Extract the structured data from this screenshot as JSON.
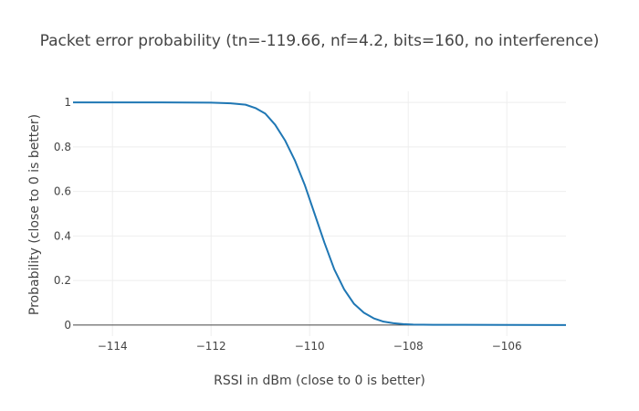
{
  "chart_data": {
    "type": "line",
    "title": "Packet error probability (tn=-119.66, nf=4.2, bits=160, no interference)",
    "xlabel": "RSSI in dBm (close to 0 is better)",
    "ylabel": "Probability (close to 0 is better)",
    "xlim": [
      -114.8,
      -104.8
    ],
    "ylim": [
      -0.05,
      1.05
    ],
    "x_ticks": [
      -114,
      -112,
      -110,
      -108,
      -106
    ],
    "x_tick_labels": [
      "−114",
      "−112",
      "−110",
      "−108",
      "−106"
    ],
    "y_ticks": [
      0,
      0.2,
      0.4,
      0.6,
      0.8,
      1
    ],
    "y_tick_labels": [
      "0",
      "0.2",
      "0.4",
      "0.6",
      "0.8",
      "1"
    ],
    "grid": true,
    "zero_line": true,
    "series": [
      {
        "color": "#1f77b4",
        "x": [
          -114.8,
          -113.0,
          -112.0,
          -111.6,
          -111.3,
          -111.1,
          -110.9,
          -110.7,
          -110.5,
          -110.3,
          -110.1,
          -109.9,
          -109.7,
          -109.5,
          -109.3,
          -109.1,
          -108.9,
          -108.7,
          -108.5,
          -108.3,
          -108.1,
          -107.9,
          -107.5,
          -107.0,
          -106.0,
          -104.8
        ],
        "y": [
          1.0,
          1.0,
          0.999,
          0.996,
          0.99,
          0.975,
          0.95,
          0.9,
          0.83,
          0.74,
          0.63,
          0.5,
          0.37,
          0.25,
          0.16,
          0.095,
          0.055,
          0.03,
          0.015,
          0.008,
          0.004,
          0.002,
          0.001,
          0.0008,
          0.0003,
          0.0
        ]
      }
    ]
  }
}
